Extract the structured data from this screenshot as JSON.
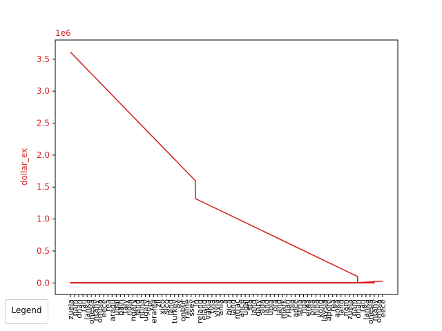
{
  "chart_data": {
    "type": "line",
    "title": "",
    "ylabel": "dollar_ex",
    "xlabel": "",
    "y_multiplier": "1e6",
    "ylim": [
      -0.18,
      3.8
    ],
    "y_ticks": [
      "0.0",
      "0.5",
      "1.0",
      "1.5",
      "2.0",
      "2.5",
      "3.0",
      "3.5"
    ],
    "y_tick_values": [
      0.0,
      0.5,
      1.0,
      1.5,
      2.0,
      2.5,
      3.0,
      3.5
    ],
    "line_color": "#d62728",
    "x_tick_labels_visible": [
      "zuela",
      "nam",
      "dhan",
      "ran",
      "lanka",
      "onesia",
      "ntany",
      "ombia",
      "eece",
      "rea",
      "aragu",
      "ugal",
      "pain",
      "taly",
      "ndia",
      "ngary",
      "land",
      "ntina",
      "ugary",
      "ypt",
      "erania",
      "zil",
      "xico",
      "sico",
      "land",
      "turkey",
      "ey",
      "onbur",
      "raine",
      "ssey",
      "in",
      "reland",
      "eland",
      "vakia",
      "tvia",
      "ylvia",
      "ania",
      "a",
      "bica",
      "land",
      "ntrac",
      "ance",
      "ugal",
      "sta",
      "land",
      "gary",
      "ada",
      "land",
      "ubla",
      "ora",
      "land",
      "mark",
      "ypan",
      "bia",
      "ance",
      "stria",
      "nga",
      "erea",
      "onia",
      "hina",
      "kong",
      "laysia",
      "apore",
      "rea",
      "anka",
      "land",
      "nam"
    ],
    "series": [
      {
        "values_description_points": [
          {
            "x_index": 0,
            "y": 3.61
          },
          {
            "x_index": 30,
            "y": 1.6
          },
          {
            "x_index": 30,
            "y": 1.32
          },
          {
            "x_index": 69,
            "y": 0.1
          },
          {
            "x_index": 69,
            "y": 0.005
          },
          {
            "x_index": 73,
            "y": 0.02
          },
          {
            "x_index": 73,
            "y": 0.005
          },
          {
            "x_index": 0,
            "y": 0.005
          },
          {
            "x_index": 0,
            "y": 0.0
          },
          {
            "x_index": 73,
            "y": 0.0
          },
          {
            "x_index": 73,
            "y": 0.025
          },
          {
            "x_index": 75,
            "y": 0.025
          }
        ]
      }
    ],
    "x_count": 76,
    "legend": {
      "title": "Legend",
      "placement": "bottom-left"
    }
  }
}
